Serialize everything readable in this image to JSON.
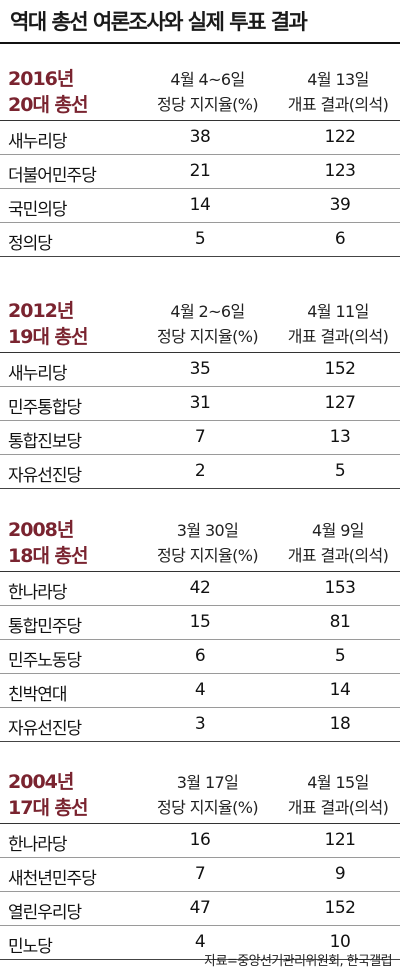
{
  "title": "역대 총선 여론조사와 실제 투표 결과",
  "source": "자료=중앙선거관리위원회, 한국갤럽",
  "column_labels": {
    "poll": "정당 지지율(%)",
    "result": "개표 결과(의석)"
  },
  "chart_data": [
    {
      "type": "table",
      "year": "2016년",
      "election": "20대 총선",
      "poll_date": "4월 4~6일",
      "result_date": "4월 13일",
      "rows": [
        {
          "party": "새누리당",
          "poll": 38,
          "seats": 122
        },
        {
          "party": "더불어민주당",
          "poll": 21,
          "seats": 123
        },
        {
          "party": "국민의당",
          "poll": 14,
          "seats": 39
        },
        {
          "party": "정의당",
          "poll": 5,
          "seats": 6
        }
      ]
    },
    {
      "type": "table",
      "year": "2012년",
      "election": "19대 총선",
      "poll_date": "4월 2~6일",
      "result_date": "4월 11일",
      "rows": [
        {
          "party": "새누리당",
          "poll": 35,
          "seats": 152
        },
        {
          "party": "민주통합당",
          "poll": 31,
          "seats": 127
        },
        {
          "party": "통합진보당",
          "poll": 7,
          "seats": 13
        },
        {
          "party": "자유선진당",
          "poll": 2,
          "seats": 5
        }
      ]
    },
    {
      "type": "table",
      "year": "2008년",
      "election": "18대 총선",
      "poll_date": "3월 30일",
      "result_date": "4월 9일",
      "rows": [
        {
          "party": "한나라당",
          "poll": 42,
          "seats": 153
        },
        {
          "party": "통합민주당",
          "poll": 15,
          "seats": 81
        },
        {
          "party": "민주노동당",
          "poll": 6,
          "seats": 5
        },
        {
          "party": "친박연대",
          "poll": 4,
          "seats": 14
        },
        {
          "party": "자유선진당",
          "poll": 3,
          "seats": 18
        }
      ]
    },
    {
      "type": "table",
      "year": "2004년",
      "election": "17대 총선",
      "poll_date": "3월 17일",
      "result_date": "4월 15일",
      "rows": [
        {
          "party": "한나라당",
          "poll": 16,
          "seats": 121
        },
        {
          "party": "새천년민주당",
          "poll": 7,
          "seats": 9
        },
        {
          "party": "열린우리당",
          "poll": 47,
          "seats": 152
        },
        {
          "party": "민노당",
          "poll": 4,
          "seats": 10
        }
      ]
    }
  ]
}
